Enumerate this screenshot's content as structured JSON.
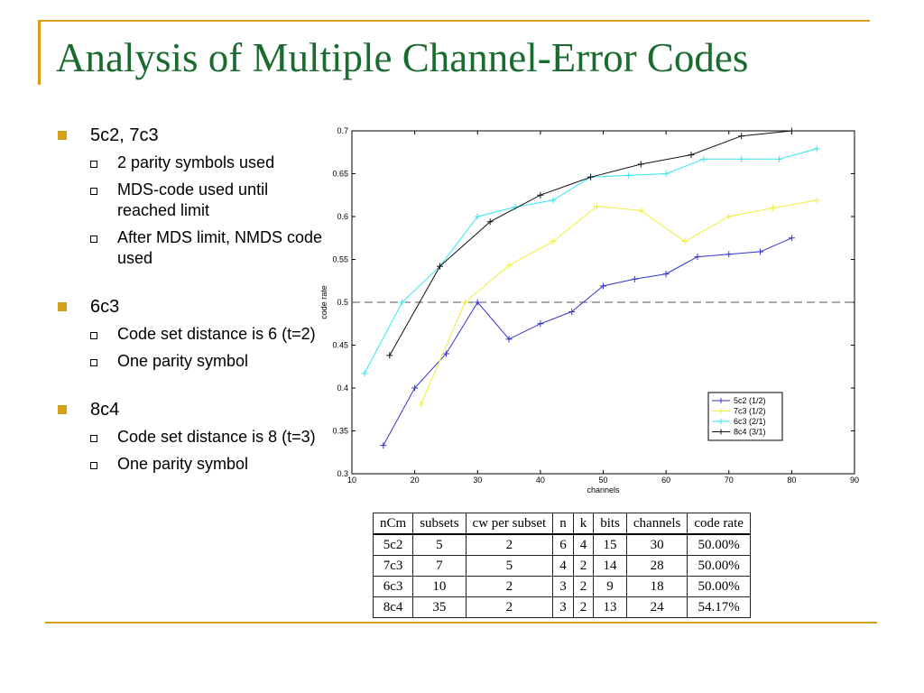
{
  "colors": {
    "accent": "#d4a017",
    "title": "#1a6b2f",
    "bullet": "#d4a017"
  },
  "title": "Analysis of Multiple Channel-Error Codes",
  "bullets": [
    {
      "label": "5c2, 7c3",
      "subs": [
        "2 parity symbols used",
        "MDS-code used until reached limit",
        "After MDS limit, NMDS code used"
      ]
    },
    {
      "label": "6c3",
      "subs": [
        "Code set distance is 6 (t=2)",
        "One parity symbol"
      ]
    },
    {
      "label": "8c4",
      "subs": [
        "Code set distance is 8 (t=3)",
        "One parity symbol"
      ]
    }
  ],
  "chart_data": {
    "type": "line",
    "xlabel": "channels",
    "ylabel": "code rate",
    "xlim": [
      10,
      90
    ],
    "ylim": [
      0.3,
      0.7
    ],
    "xticks": [
      "10",
      "20",
      "30",
      "40",
      "50",
      "60",
      "70",
      "80",
      "90"
    ],
    "yticks": [
      "0.3",
      "0.35",
      "0.4",
      "0.45",
      "0.5",
      "0.55",
      "0.6",
      "0.65",
      "0.7"
    ],
    "reference_line": 0.5,
    "legend_position": "bottom-right",
    "series": [
      {
        "name": "5c2 (1/2)",
        "color": "#3333cc",
        "x": [
          15,
          20,
          25,
          30,
          35,
          40,
          45,
          50,
          55,
          60,
          65,
          70,
          75,
          80
        ],
        "y": [
          0.333,
          0.4,
          0.44,
          0.5,
          0.457,
          0.475,
          0.489,
          0.519,
          0.527,
          0.533,
          0.553,
          0.556,
          0.559,
          0.575
        ]
      },
      {
        "name": "7c3 (1/2)",
        "color": "#f0ee3c",
        "x": [
          21,
          28,
          35,
          42,
          49,
          56,
          63,
          70,
          77,
          84
        ],
        "y": [
          0.381,
          0.5,
          0.543,
          0.571,
          0.612,
          0.607,
          0.571,
          0.6,
          0.61,
          0.619
        ]
      },
      {
        "name": "6c3 (2/1)",
        "color": "#33e6f0",
        "x": [
          12,
          18,
          24,
          30,
          36,
          42,
          48,
          54,
          60,
          66,
          72,
          78,
          84
        ],
        "y": [
          0.417,
          0.5,
          0.542,
          0.6,
          0.611,
          0.619,
          0.646,
          0.648,
          0.65,
          0.667,
          0.667,
          0.667,
          0.679
        ]
      },
      {
        "name": "8c4 (3/1)",
        "color": "#111111",
        "x": [
          16,
          24,
          32,
          40,
          48,
          56,
          64,
          72,
          80
        ],
        "y": [
          0.438,
          0.542,
          0.594,
          0.625,
          0.646,
          0.661,
          0.672,
          0.694,
          0.7
        ]
      }
    ]
  },
  "table": {
    "headers": [
      "nCm",
      "subsets",
      "cw per subset",
      "n",
      "k",
      "bits",
      "channels",
      "code rate"
    ],
    "rows": [
      [
        "5c2",
        "5",
        "2",
        "6",
        "4",
        "15",
        "30",
        "50.00%"
      ],
      [
        "7c3",
        "7",
        "5",
        "4",
        "2",
        "14",
        "28",
        "50.00%"
      ],
      [
        "6c3",
        "10",
        "2",
        "3",
        "2",
        "9",
        "18",
        "50.00%"
      ],
      [
        "8c4",
        "35",
        "2",
        "3",
        "2",
        "13",
        "24",
        "54.17%"
      ]
    ]
  }
}
